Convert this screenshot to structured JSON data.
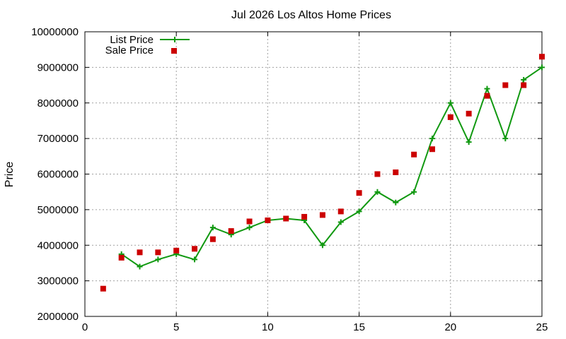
{
  "chart_data": {
    "type": "line",
    "title": "Jul 2026 Los Altos Home Prices",
    "xlabel": "",
    "ylabel": "Price",
    "xlim": [
      0,
      25
    ],
    "ylim": [
      2000000,
      10000000
    ],
    "xticks": [
      0,
      5,
      10,
      15,
      20,
      25
    ],
    "yticks": [
      2000000,
      3000000,
      4000000,
      5000000,
      6000000,
      7000000,
      8000000,
      9000000,
      10000000
    ],
    "x_tick_labels": [
      "0",
      "5",
      "10",
      "15",
      "20",
      "25"
    ],
    "y_tick_labels": [
      "2000000",
      "3000000",
      "4000000",
      "5000000",
      "6000000",
      "7000000",
      "8000000",
      "9000000",
      "10000000"
    ],
    "grid": true,
    "legend_position": "top-left",
    "series": [
      {
        "name": "List Price",
        "style": "line-with-plus-markers",
        "color": "#119911",
        "x": [
          2,
          3,
          4,
          5,
          6,
          7,
          8,
          9,
          10,
          11,
          12,
          13,
          14,
          15,
          16,
          17,
          18,
          19,
          20,
          21,
          22,
          23,
          24,
          25
        ],
        "y": [
          3750000,
          3400000,
          3600000,
          3750000,
          3600000,
          4500000,
          4300000,
          4500000,
          4700000,
          4750000,
          4700000,
          4000000,
          4650000,
          4950000,
          5500000,
          5200000,
          5500000,
          7000000,
          8000000,
          6900000,
          8400000,
          7000000,
          8650000,
          9000000
        ]
      },
      {
        "name": "Sale Price",
        "style": "square-markers",
        "color": "#cc0000",
        "x": [
          1,
          2,
          3,
          4,
          5,
          6,
          7,
          8,
          9,
          10,
          11,
          12,
          13,
          14,
          15,
          16,
          17,
          18,
          19,
          20,
          21,
          22,
          23,
          24,
          25
        ],
        "y": [
          2780000,
          3650000,
          3800000,
          3800000,
          3850000,
          3900000,
          4170000,
          4400000,
          4670000,
          4700000,
          4750000,
          4800000,
          4850000,
          4950000,
          5470000,
          6000000,
          6050000,
          6550000,
          6700000,
          7600000,
          7700000,
          8200000,
          8500000,
          8500000,
          9300000
        ]
      }
    ]
  }
}
